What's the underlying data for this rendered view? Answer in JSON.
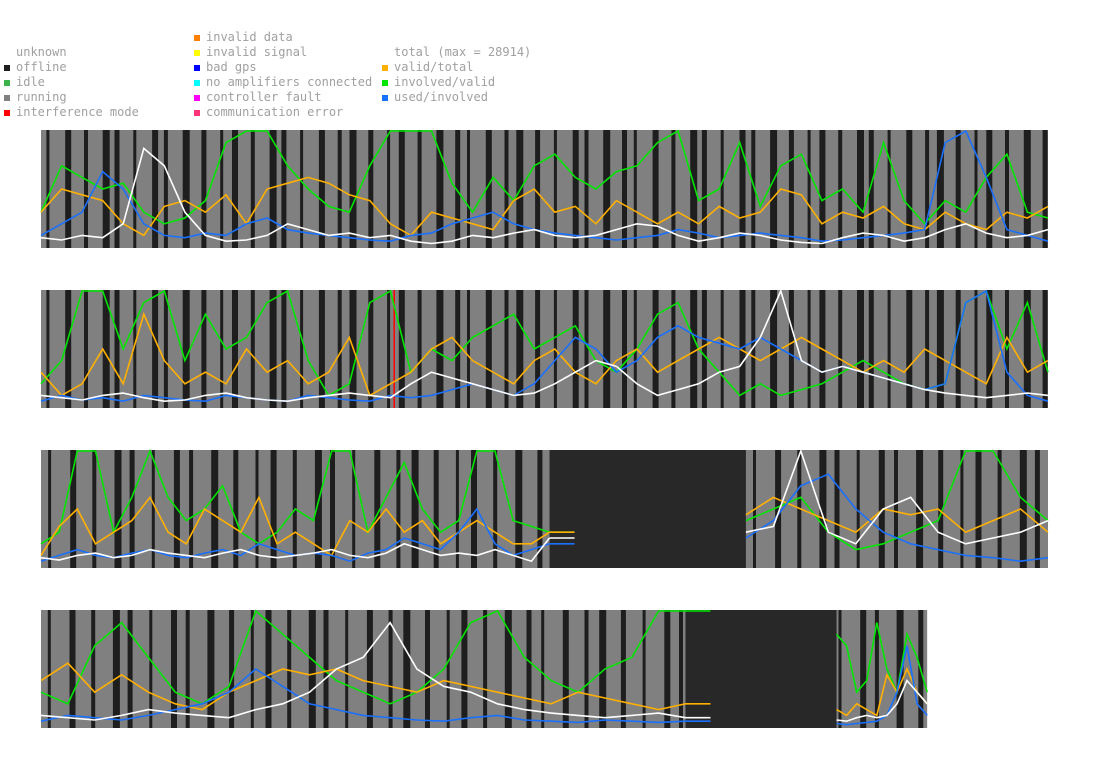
{
  "legend": {
    "status": [
      {
        "label": "unknown",
        "color": ""
      },
      {
        "label": "offline",
        "color": "#1e1e1e"
      },
      {
        "label": "idle",
        "color": "#3cb44b"
      },
      {
        "label": "running",
        "color": "#808080"
      },
      {
        "label": "interference mode",
        "color": "#ff0000"
      }
    ],
    "errors": [
      {
        "label": "invalid data",
        "color": "#ff8000"
      },
      {
        "label": "invalid signal",
        "color": "#ffff00"
      },
      {
        "label": "bad gps",
        "color": "#0000ff"
      },
      {
        "label": "no amplifiers connected",
        "color": "#00ffff"
      },
      {
        "label": "controller fault",
        "color": "#ff00ff"
      },
      {
        "label": "communication error",
        "color": "#ff3377"
      }
    ],
    "metrics": [
      {
        "label": "total (max = 28914)",
        "color": ""
      },
      {
        "label": "valid/total",
        "color": "#ffb000"
      },
      {
        "label": "involved/valid",
        "color": "#00e600"
      },
      {
        "label": "used/involved",
        "color": "#1a70ff"
      }
    ]
  },
  "colors": {
    "running": "#808080",
    "offline": "#1e1e1e",
    "outage": "#282828",
    "interference": "#ff0000",
    "total": "#ffffff",
    "valid_total": "#ffb000",
    "involved_valid": "#00e600",
    "used_involved": "#1a70ff"
  },
  "chart_data": {
    "type": "line",
    "y_range": [
      0,
      1
    ],
    "total_max": 28914,
    "series_names": [
      "total",
      "valid/total",
      "involved/valid",
      "used/involved"
    ],
    "strips": [
      {
        "data_fraction": 1.0,
        "outage": null,
        "offline_bands": 60,
        "total": [
          0.08,
          0.06,
          0.1,
          0.08,
          0.2,
          0.85,
          0.7,
          0.3,
          0.1,
          0.05,
          0.06,
          0.1,
          0.2,
          0.15,
          0.1,
          0.12,
          0.08,
          0.1,
          0.05,
          0.03,
          0.05,
          0.1,
          0.08,
          0.12,
          0.15,
          0.1,
          0.08,
          0.1,
          0.15,
          0.2,
          0.18,
          0.1,
          0.05,
          0.08,
          0.12,
          0.1,
          0.06,
          0.04,
          0.03,
          0.08,
          0.12,
          0.1,
          0.05,
          0.08,
          0.15,
          0.2,
          0.12,
          0.08,
          0.1,
          0.15
        ],
        "valid_total": [
          0.3,
          0.5,
          0.45,
          0.4,
          0.2,
          0.1,
          0.35,
          0.4,
          0.3,
          0.45,
          0.2,
          0.5,
          0.55,
          0.6,
          0.55,
          0.45,
          0.4,
          0.2,
          0.1,
          0.3,
          0.25,
          0.2,
          0.15,
          0.4,
          0.5,
          0.3,
          0.35,
          0.2,
          0.4,
          0.3,
          0.2,
          0.3,
          0.2,
          0.35,
          0.25,
          0.3,
          0.5,
          0.45,
          0.2,
          0.3,
          0.25,
          0.35,
          0.2,
          0.15,
          0.3,
          0.2,
          0.15,
          0.3,
          0.25,
          0.35
        ],
        "involved_valid": [
          0.3,
          0.7,
          0.6,
          0.5,
          0.55,
          0.3,
          0.2,
          0.25,
          0.4,
          0.9,
          1.0,
          1.0,
          0.7,
          0.5,
          0.35,
          0.3,
          0.7,
          1.0,
          1.0,
          1.0,
          0.55,
          0.3,
          0.6,
          0.4,
          0.7,
          0.8,
          0.6,
          0.5,
          0.65,
          0.7,
          0.9,
          1.0,
          0.4,
          0.5,
          0.9,
          0.35,
          0.7,
          0.8,
          0.4,
          0.5,
          0.3,
          0.9,
          0.4,
          0.2,
          0.4,
          0.3,
          0.6,
          0.8,
          0.3,
          0.25
        ],
        "used_involved": [
          0.1,
          0.2,
          0.3,
          0.65,
          0.5,
          0.2,
          0.1,
          0.08,
          0.12,
          0.1,
          0.2,
          0.25,
          0.15,
          0.12,
          0.1,
          0.08,
          0.06,
          0.05,
          0.1,
          0.12,
          0.2,
          0.25,
          0.3,
          0.2,
          0.15,
          0.12,
          0.1,
          0.08,
          0.06,
          0.08,
          0.1,
          0.15,
          0.12,
          0.08,
          0.1,
          0.12,
          0.1,
          0.08,
          0.05,
          0.06,
          0.08,
          0.1,
          0.12,
          0.15,
          0.9,
          1.0,
          0.6,
          0.15,
          0.1,
          0.05
        ]
      },
      {
        "data_fraction": 1.0,
        "outage": null,
        "offline_bands": 60,
        "interference_at": 0.35,
        "total": [
          0.1,
          0.08,
          0.06,
          0.1,
          0.12,
          0.08,
          0.05,
          0.06,
          0.1,
          0.12,
          0.08,
          0.06,
          0.05,
          0.08,
          0.1,
          0.12,
          0.1,
          0.08,
          0.2,
          0.3,
          0.25,
          0.2,
          0.15,
          0.1,
          0.12,
          0.2,
          0.3,
          0.4,
          0.35,
          0.2,
          0.1,
          0.15,
          0.2,
          0.3,
          0.35,
          0.6,
          1.0,
          0.4,
          0.3,
          0.35,
          0.3,
          0.25,
          0.2,
          0.15,
          0.12,
          0.1,
          0.08,
          0.1,
          0.12,
          0.1
        ],
        "valid_total": [
          0.3,
          0.1,
          0.2,
          0.5,
          0.2,
          0.8,
          0.4,
          0.2,
          0.3,
          0.2,
          0.5,
          0.3,
          0.4,
          0.2,
          0.3,
          0.6,
          0.1,
          0.2,
          0.3,
          0.5,
          0.6,
          0.4,
          0.3,
          0.2,
          0.4,
          0.5,
          0.3,
          0.2,
          0.4,
          0.5,
          0.3,
          0.4,
          0.5,
          0.6,
          0.5,
          0.4,
          0.5,
          0.6,
          0.5,
          0.4,
          0.3,
          0.4,
          0.3,
          0.5,
          0.4,
          0.3,
          0.2,
          0.6,
          0.3,
          0.4
        ],
        "involved_valid": [
          0.2,
          0.4,
          1.0,
          1.0,
          0.5,
          0.9,
          1.0,
          0.4,
          0.8,
          0.5,
          0.6,
          0.9,
          1.0,
          0.4,
          0.1,
          0.2,
          0.9,
          1.0,
          0.3,
          0.5,
          0.4,
          0.6,
          0.7,
          0.8,
          0.5,
          0.6,
          0.7,
          0.4,
          0.3,
          0.5,
          0.8,
          0.9,
          0.5,
          0.3,
          0.1,
          0.2,
          0.1,
          0.15,
          0.2,
          0.3,
          0.4,
          0.3,
          0.2,
          0.15,
          0.2,
          0.9,
          1.0,
          0.5,
          0.9,
          0.3
        ],
        "used_involved": [
          0.05,
          0.1,
          0.06,
          0.08,
          0.05,
          0.1,
          0.08,
          0.06,
          0.05,
          0.1,
          0.08,
          0.06,
          0.05,
          0.1,
          0.08,
          0.06,
          0.05,
          0.1,
          0.08,
          0.1,
          0.15,
          0.2,
          0.15,
          0.1,
          0.2,
          0.4,
          0.6,
          0.5,
          0.3,
          0.4,
          0.6,
          0.7,
          0.6,
          0.55,
          0.5,
          0.6,
          0.5,
          0.4,
          0.3,
          0.35,
          0.3,
          0.25,
          0.2,
          0.15,
          0.2,
          0.9,
          1.0,
          0.3,
          0.1,
          0.05
        ]
      },
      {
        "data_fraction": 1.0,
        "outage": [
          0.505,
          0.7
        ],
        "offline_bands": 50,
        "total": [
          0.08,
          0.06,
          0.1,
          0.12,
          0.08,
          0.1,
          0.15,
          0.12,
          0.1,
          0.08,
          0.12,
          0.15,
          0.1,
          0.08,
          0.1,
          0.12,
          0.15,
          0.1,
          0.08,
          0.12,
          0.2,
          0.15,
          0.1,
          0.12,
          0.1,
          0.15,
          0.1,
          0.05,
          0.25,
          0.3,
          0.35,
          1.0,
          0.3,
          0.2,
          0.5,
          0.6,
          0.3,
          0.2,
          0.25,
          0.3,
          0.4
        ],
        "valid_total": [
          0.1,
          0.35,
          0.5,
          0.2,
          0.3,
          0.4,
          0.6,
          0.3,
          0.2,
          0.5,
          0.4,
          0.3,
          0.6,
          0.2,
          0.3,
          0.2,
          0.1,
          0.4,
          0.3,
          0.5,
          0.3,
          0.4,
          0.2,
          0.3,
          0.4,
          0.3,
          0.2,
          0.2,
          0.3,
          0.45,
          0.6,
          0.5,
          0.4,
          0.3,
          0.5,
          0.45,
          0.5,
          0.3,
          0.4,
          0.5,
          0.3
        ],
        "involved_valid": [
          0.2,
          0.3,
          1.0,
          1.0,
          0.3,
          0.6,
          1.0,
          0.6,
          0.4,
          0.5,
          0.7,
          0.3,
          0.2,
          0.3,
          0.5,
          0.4,
          1.0,
          1.0,
          0.3,
          0.6,
          0.9,
          0.5,
          0.3,
          0.4,
          1.0,
          1.0,
          0.4,
          0.35,
          0.3,
          0.4,
          0.5,
          0.6,
          0.3,
          0.15,
          0.2,
          0.3,
          0.4,
          1.0,
          1.0,
          0.6,
          0.4
        ],
        "used_involved": [
          0.05,
          0.1,
          0.15,
          0.1,
          0.08,
          0.12,
          0.15,
          0.1,
          0.08,
          0.12,
          0.15,
          0.1,
          0.2,
          0.15,
          0.1,
          0.12,
          0.1,
          0.05,
          0.12,
          0.15,
          0.25,
          0.2,
          0.15,
          0.3,
          0.5,
          0.2,
          0.1,
          0.15,
          0.2,
          0.25,
          0.4,
          0.7,
          0.8,
          0.5,
          0.3,
          0.2,
          0.15,
          0.1,
          0.08,
          0.05,
          0.08
        ]
      },
      {
        "data_fraction": 0.88,
        "outage": [
          0.64,
          0.79
        ],
        "offline_bands": 45,
        "total": [
          0.1,
          0.08,
          0.06,
          0.1,
          0.15,
          0.12,
          0.1,
          0.08,
          0.15,
          0.2,
          0.3,
          0.5,
          0.6,
          0.9,
          0.5,
          0.35,
          0.3,
          0.2,
          0.15,
          0.12,
          0.1,
          0.08,
          0.1,
          0.12,
          0.08,
          0.06,
          0.05,
          0.08,
          0.1,
          0.08,
          0.1,
          0.2,
          0.4,
          0.3,
          0.2
        ],
        "valid_total": [
          0.4,
          0.55,
          0.3,
          0.45,
          0.3,
          0.2,
          0.15,
          0.3,
          0.4,
          0.5,
          0.45,
          0.5,
          0.4,
          0.35,
          0.3,
          0.4,
          0.35,
          0.3,
          0.25,
          0.2,
          0.3,
          0.25,
          0.2,
          0.15,
          0.2,
          0.15,
          0.1,
          0.2,
          0.15,
          0.1,
          0.45,
          0.3,
          0.5,
          0.3,
          0.2
        ],
        "involved_valid": [
          0.3,
          0.2,
          0.7,
          0.9,
          0.6,
          0.3,
          0.2,
          0.35,
          1.0,
          0.8,
          0.6,
          0.4,
          0.3,
          0.2,
          0.3,
          0.5,
          0.9,
          1.0,
          0.6,
          0.4,
          0.3,
          0.5,
          0.6,
          1.0,
          1.0,
          0.8,
          0.7,
          0.3,
          0.4,
          0.9,
          0.5,
          0.3,
          0.8,
          0.6,
          0.3
        ],
        "used_involved": [
          0.05,
          0.1,
          0.08,
          0.06,
          0.1,
          0.15,
          0.2,
          0.3,
          0.5,
          0.35,
          0.2,
          0.15,
          0.1,
          0.08,
          0.06,
          0.05,
          0.08,
          0.1,
          0.06,
          0.05,
          0.04,
          0.06,
          0.05,
          0.04,
          0.05,
          0.03,
          0.02,
          0.03,
          0.04,
          0.05,
          0.1,
          0.3,
          0.7,
          0.2,
          0.1
        ]
      }
    ]
  }
}
